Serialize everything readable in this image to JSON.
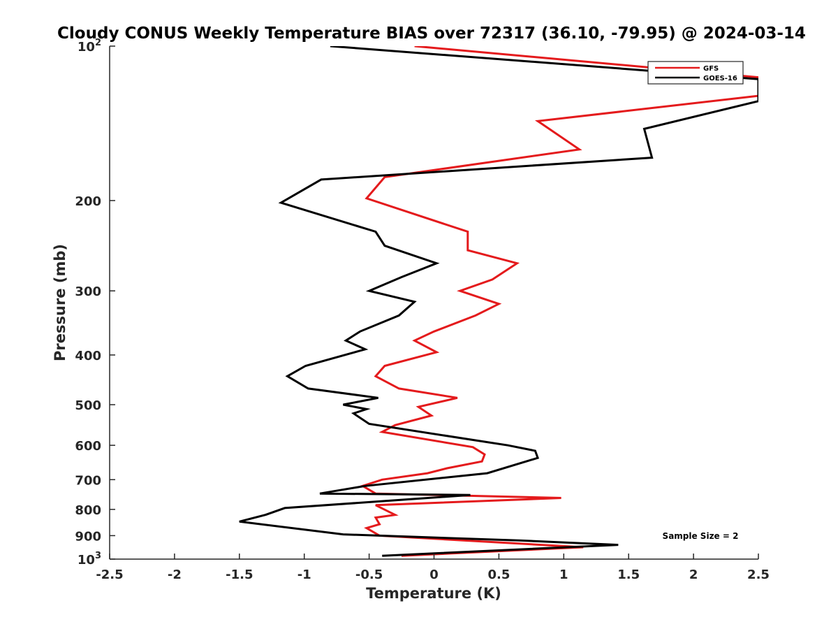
{
  "chart_data": {
    "type": "line",
    "title": "Cloudy CONUS Weekly Temperature BIAS over 72317 (36.10, -79.95) @ 2024-03-14",
    "xlabel": "Temperature (K)",
    "ylabel": "Pressure (mb)",
    "xlim": [
      -2.5,
      2.5
    ],
    "ylim": [
      100,
      1000
    ],
    "yscale": "log",
    "y_reversed": true,
    "grid": false,
    "legend_position": "top-right",
    "x_ticks": [
      "-2.5",
      "-2",
      "-1.5",
      "-1",
      "-0.5",
      "0",
      "0.5",
      "1",
      "1.5",
      "2",
      "2.5"
    ],
    "x_tick_values": [
      -2.5,
      -2,
      -1.5,
      -1,
      -0.5,
      0,
      0.5,
      1,
      1.5,
      2,
      2.5
    ],
    "y_ticks": [
      {
        "value": 100,
        "label": "10",
        "exp": "2"
      },
      {
        "value": 200,
        "label": "200"
      },
      {
        "value": 300,
        "label": "300"
      },
      {
        "value": 400,
        "label": "400"
      },
      {
        "value": 500,
        "label": "500"
      },
      {
        "value": 600,
        "label": "600"
      },
      {
        "value": 700,
        "label": "700"
      },
      {
        "value": 800,
        "label": "800"
      },
      {
        "value": 900,
        "label": "900"
      },
      {
        "value": 1000,
        "label": "10",
        "exp": "3"
      }
    ],
    "series": [
      {
        "name": "GFS",
        "color": "#e41a1c",
        "points": [
          [
            -0.15,
            100
          ],
          [
            2.5,
            115
          ],
          [
            2.5,
            125
          ],
          [
            0.8,
            140
          ],
          [
            1.12,
            159
          ],
          [
            -0.38,
            180
          ],
          [
            -0.52,
            198
          ],
          [
            0.26,
            230
          ],
          [
            0.26,
            250
          ],
          [
            0.64,
            265
          ],
          [
            0.45,
            285
          ],
          [
            0.2,
            300
          ],
          [
            0.5,
            318
          ],
          [
            0.32,
            335
          ],
          [
            0.0,
            360
          ],
          [
            -0.15,
            375
          ],
          [
            0.02,
            395
          ],
          [
            -0.38,
            420
          ],
          [
            -0.45,
            440
          ],
          [
            -0.27,
            465
          ],
          [
            0.18,
            485
          ],
          [
            -0.12,
            505
          ],
          [
            -0.02,
            525
          ],
          [
            -0.3,
            548
          ],
          [
            -0.4,
            565
          ],
          [
            0.3,
            605
          ],
          [
            0.39,
            625
          ],
          [
            0.37,
            645
          ],
          [
            0.1,
            665
          ],
          [
            -0.05,
            680
          ],
          [
            -0.4,
            700
          ],
          [
            -0.55,
            720
          ],
          [
            -0.45,
            745
          ],
          [
            0.98,
            760
          ],
          [
            -0.45,
            785
          ],
          [
            -0.3,
            820
          ],
          [
            -0.45,
            830
          ],
          [
            -0.42,
            855
          ],
          [
            -0.52,
            870
          ],
          [
            -0.42,
            900
          ],
          [
            1.15,
            948
          ],
          [
            -0.25,
            985
          ]
        ]
      },
      {
        "name": "GOES-16",
        "color": "#000000",
        "points": [
          [
            -0.8,
            100
          ],
          [
            2.5,
            116
          ],
          [
            2.5,
            128
          ],
          [
            1.62,
            145
          ],
          [
            1.68,
            165
          ],
          [
            -0.87,
            182
          ],
          [
            -1.18,
            202
          ],
          [
            -0.45,
            230
          ],
          [
            -0.38,
            245
          ],
          [
            0.02,
            265
          ],
          [
            -0.25,
            282
          ],
          [
            -0.5,
            300
          ],
          [
            -0.15,
            315
          ],
          [
            -0.27,
            335
          ],
          [
            -0.57,
            360
          ],
          [
            -0.68,
            375
          ],
          [
            -0.53,
            390
          ],
          [
            -0.99,
            420
          ],
          [
            -1.13,
            440
          ],
          [
            -0.97,
            465
          ],
          [
            -0.43,
            485
          ],
          [
            -0.7,
            500
          ],
          [
            -0.52,
            510
          ],
          [
            -0.62,
            520
          ],
          [
            -0.5,
            545
          ],
          [
            0.57,
            600
          ],
          [
            0.78,
            615
          ],
          [
            0.8,
            635
          ],
          [
            0.41,
            680
          ],
          [
            -0.53,
            720
          ],
          [
            -0.88,
            745
          ],
          [
            0.28,
            750
          ],
          [
            -1.15,
            795
          ],
          [
            -1.3,
            820
          ],
          [
            -1.5,
            845
          ],
          [
            -0.7,
            895
          ],
          [
            0.67,
            920
          ],
          [
            1.42,
            938
          ],
          [
            -0.4,
            985
          ]
        ]
      }
    ],
    "annotations": [
      "Sample Size = 2"
    ]
  }
}
